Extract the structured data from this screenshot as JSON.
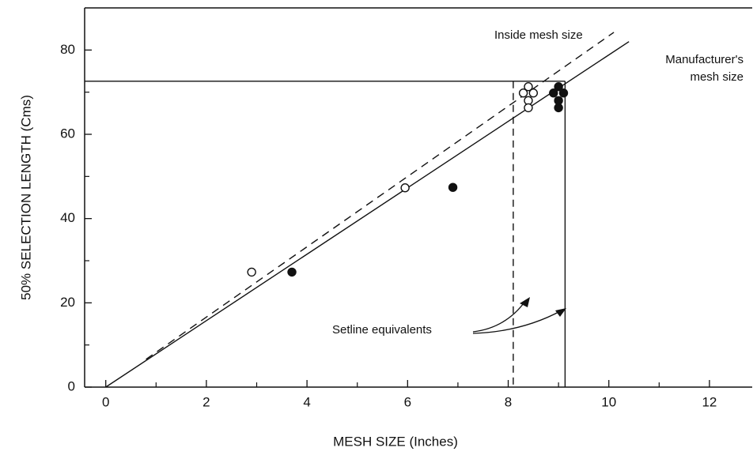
{
  "chart_data": {
    "type": "scatter",
    "xlabel": "MESH SIZE (Inches)",
    "ylabel": "50% SELECTION LENGTH (Cms)",
    "xlim": [
      -0.42,
      12.85
    ],
    "ylim": [
      0,
      90
    ],
    "xticks": [
      0,
      2,
      4,
      6,
      8,
      10,
      12
    ],
    "yticks": [
      0,
      20,
      40,
      60,
      80
    ],
    "x_minor_ticks": [
      1,
      3,
      5,
      7,
      9,
      11
    ],
    "y_minor_ticks": [
      10,
      30,
      50,
      70
    ],
    "color": "#111111",
    "series": [
      {
        "marker": "open",
        "x": [
          2.9,
          5.95,
          8.4,
          8.3,
          8.5,
          8.4,
          8.4
        ],
        "values": [
          27.3,
          47.3,
          71.3,
          69.8,
          69.8,
          68.0,
          66.3
        ]
      },
      {
        "marker": "filled",
        "x": [
          3.7,
          6.9,
          9.0,
          8.9,
          9.1,
          9.0,
          9.0
        ],
        "values": [
          27.3,
          47.4,
          71.3,
          69.8,
          69.8,
          68.0,
          66.3
        ]
      }
    ],
    "lines": [
      {
        "style": "dashed",
        "x": [
          0.8,
          10.1
        ],
        "values": [
          6.6,
          84.2
        ]
      },
      {
        "style": "solid",
        "x": [
          0,
          10.4
        ],
        "values": [
          0,
          82
        ]
      }
    ],
    "reference_hline": 72.6,
    "reference_vlines": [
      {
        "style": "dashed",
        "x": 8.1
      },
      {
        "style": "solid",
        "x": 9.13
      }
    ],
    "annotations": [
      "Inside mesh size",
      "Manufacturer's",
      "mesh size",
      "Setline equivalents"
    ]
  }
}
